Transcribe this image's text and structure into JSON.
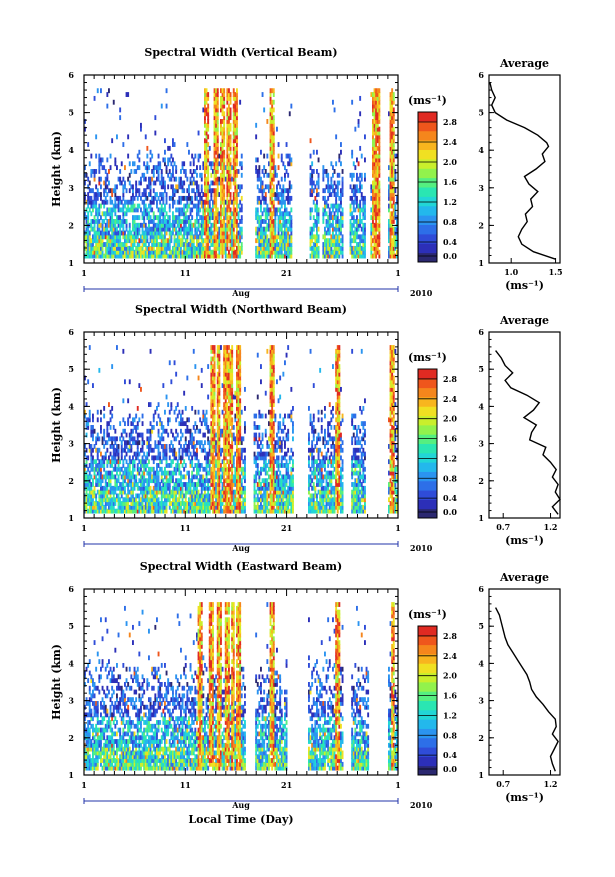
{
  "chart_data": [
    {
      "type": "heatmap",
      "title": "Spectral Width (Vertical Beam)",
      "ylabel": "Height (km)",
      "ylim": [
        1,
        6
      ],
      "y_ticks": [
        "1",
        "2",
        "3",
        "4",
        "5",
        "6"
      ],
      "x_ticks": [
        "1",
        "11",
        "21",
        "1"
      ],
      "x_month": "Aug",
      "year": "2010",
      "colorbar_unit": "(ms⁻¹)",
      "colorbar_ticks": [
        "0.0",
        "0.4",
        "0.8",
        "1.2",
        "1.6",
        "2.0",
        "2.4",
        "2.8"
      ],
      "colorbar_range": [
        0,
        3.0
      ],
      "x_day_range": [
        1,
        32
      ],
      "gap_days": [
        [
          16.5,
          17.8
        ],
        [
          21.5,
          23.2
        ],
        [
          24.2,
          24.5
        ],
        [
          26.5,
          27.2
        ],
        [
          28.8,
          29.2
        ],
        [
          30.2,
          31.0
        ]
      ],
      "high_days": [
        13.0,
        14.0,
        14.6,
        15.2,
        15.8,
        19.5,
        29.5,
        29.9,
        31.3
      ],
      "average": {
        "title": "Average",
        "xlabel": "(ms⁻¹)",
        "x_ticks": [
          "1.0",
          "1.5"
        ],
        "xlim": [
          0.75,
          1.55
        ],
        "heights": [
          1.1,
          1.3,
          1.5,
          1.7,
          1.9,
          2.1,
          2.3,
          2.5,
          2.7,
          2.9,
          3.1,
          3.3,
          3.5,
          3.7,
          3.9,
          4.1,
          4.2,
          4.4,
          4.6,
          4.8,
          5.0,
          5.2,
          5.4,
          5.6,
          5.8
        ],
        "values": [
          1.5,
          1.25,
          1.12,
          1.08,
          1.12,
          1.18,
          1.16,
          1.24,
          1.22,
          1.3,
          1.2,
          1.15,
          1.28,
          1.38,
          1.35,
          1.42,
          1.4,
          1.3,
          1.15,
          0.95,
          0.82,
          0.78,
          0.82,
          0.78,
          0.76
        ]
      }
    },
    {
      "type": "heatmap",
      "title": "Spectral Width (Northward Beam)",
      "ylabel": "Height (km)",
      "ylim": [
        1,
        6
      ],
      "y_ticks": [
        "1",
        "2",
        "3",
        "4",
        "5",
        "6"
      ],
      "x_ticks": [
        "1",
        "11",
        "21",
        "1"
      ],
      "x_month": "Aug",
      "year": "2010",
      "colorbar_unit": "(ms⁻¹)",
      "colorbar_ticks": [
        "0.0",
        "0.4",
        "0.8",
        "1.2",
        "1.6",
        "2.0",
        "2.4",
        "2.8"
      ],
      "colorbar_range": [
        0,
        3.0
      ],
      "x_day_range": [
        1,
        32
      ],
      "gap_days": [
        [
          16.8,
          17.6
        ],
        [
          21.6,
          23.0
        ],
        [
          26.5,
          27.3
        ],
        [
          28.8,
          31.0
        ]
      ],
      "high_days": [
        13.6,
        14.2,
        14.9,
        15.4,
        16.2,
        19.5,
        26.0,
        29.7,
        31.3
      ],
      "average": {
        "title": "Average",
        "xlabel": "(ms⁻¹)",
        "x_ticks": [
          "0.7",
          "1.2"
        ],
        "xlim": [
          0.55,
          1.3
        ],
        "heights": [
          1.1,
          1.3,
          1.5,
          1.7,
          1.9,
          2.1,
          2.3,
          2.5,
          2.7,
          2.9,
          3.1,
          3.3,
          3.5,
          3.7,
          3.9,
          4.1,
          4.3,
          4.5,
          4.7,
          4.9,
          5.1,
          5.3,
          5.5
        ],
        "values": [
          1.28,
          1.22,
          1.3,
          1.25,
          1.28,
          1.22,
          1.26,
          1.2,
          1.12,
          1.15,
          0.98,
          1.0,
          1.05,
          0.92,
          1.02,
          1.08,
          0.95,
          0.78,
          0.72,
          0.8,
          0.72,
          0.68,
          0.62
        ]
      }
    },
    {
      "type": "heatmap",
      "title": "Spectral Width (Eastward Beam)",
      "ylabel": "Height (km)",
      "xlabel": "Local Time (Day)",
      "ylim": [
        1,
        6
      ],
      "y_ticks": [
        "1",
        "2",
        "3",
        "4",
        "5",
        "6"
      ],
      "x_ticks": [
        "1",
        "11",
        "21",
        "1"
      ],
      "x_month": "Aug",
      "year": "2010",
      "colorbar_unit": "(ms⁻¹)",
      "colorbar_ticks": [
        "0.0",
        "0.4",
        "0.8",
        "1.2",
        "1.6",
        "2.0",
        "2.4",
        "2.8"
      ],
      "colorbar_range": [
        0,
        3.0
      ],
      "x_day_range": [
        1,
        32
      ],
      "gap_days": [
        [
          16.8,
          17.8
        ],
        [
          21.0,
          23.0
        ],
        [
          26.5,
          27.3
        ],
        [
          29.0,
          31.0
        ]
      ],
      "high_days": [
        12.4,
        13.5,
        14.3,
        15.0,
        15.6,
        16.2,
        19.5,
        26.0,
        29.9,
        31.4
      ],
      "average": {
        "title": "Average",
        "xlabel": "(ms⁻¹)",
        "x_ticks": [
          "0.7",
          "1.2"
        ],
        "xlim": [
          0.55,
          1.3
        ],
        "heights": [
          1.1,
          1.3,
          1.5,
          1.7,
          1.9,
          2.1,
          2.3,
          2.5,
          2.7,
          2.9,
          3.1,
          3.3,
          3.5,
          3.7,
          3.9,
          4.1,
          4.3,
          4.5,
          4.7,
          4.9,
          5.1,
          5.3,
          5.5
        ],
        "values": [
          1.25,
          1.22,
          1.2,
          1.24,
          1.28,
          1.22,
          1.26,
          1.25,
          1.18,
          1.12,
          1.05,
          1.0,
          0.98,
          0.95,
          0.9,
          0.85,
          0.8,
          0.75,
          0.72,
          0.7,
          0.68,
          0.66,
          0.62
        ]
      }
    }
  ],
  "colors": {
    "scale": [
      "#2b2870",
      "#2c2fb8",
      "#2f4cd8",
      "#2d6fe8",
      "#2b94f0",
      "#23b8ec",
      "#22d6d6",
      "#2ae6b2",
      "#55ef80",
      "#92f24c",
      "#c9ef2c",
      "#f0e022",
      "#f8b51e",
      "#f5861c",
      "#ef561c",
      "#e02a22"
    ]
  }
}
